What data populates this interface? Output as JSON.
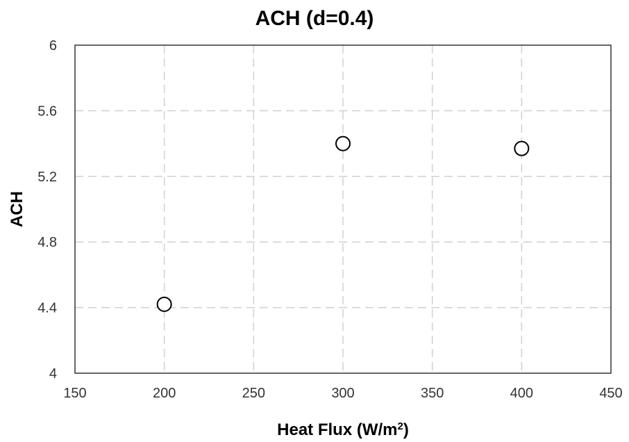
{
  "chart_data": {
    "type": "scatter",
    "title": "ACH (d=0.4)",
    "xlabel_main": "Heat Flux (W/m",
    "xlabel_sup": "2",
    "xlabel_end": ")",
    "ylabel": "ACH",
    "xlim": [
      150,
      450
    ],
    "ylim": [
      4,
      6
    ],
    "xticks": [
      150,
      200,
      250,
      300,
      350,
      400,
      450
    ],
    "yticks": [
      4,
      4.4,
      4.8,
      5.2,
      5.6,
      6
    ],
    "xtick_labels": [
      "150",
      "200",
      "250",
      "300",
      "350",
      "400",
      "450"
    ],
    "ytick_labels": [
      "4",
      "4.4",
      "4.8",
      "5.2",
      "5.6",
      "6"
    ],
    "grid": true,
    "marker": "open-circle",
    "points": [
      {
        "x": 200,
        "y": 4.42
      },
      {
        "x": 300,
        "y": 5.4
      },
      {
        "x": 400,
        "y": 5.37
      }
    ]
  }
}
